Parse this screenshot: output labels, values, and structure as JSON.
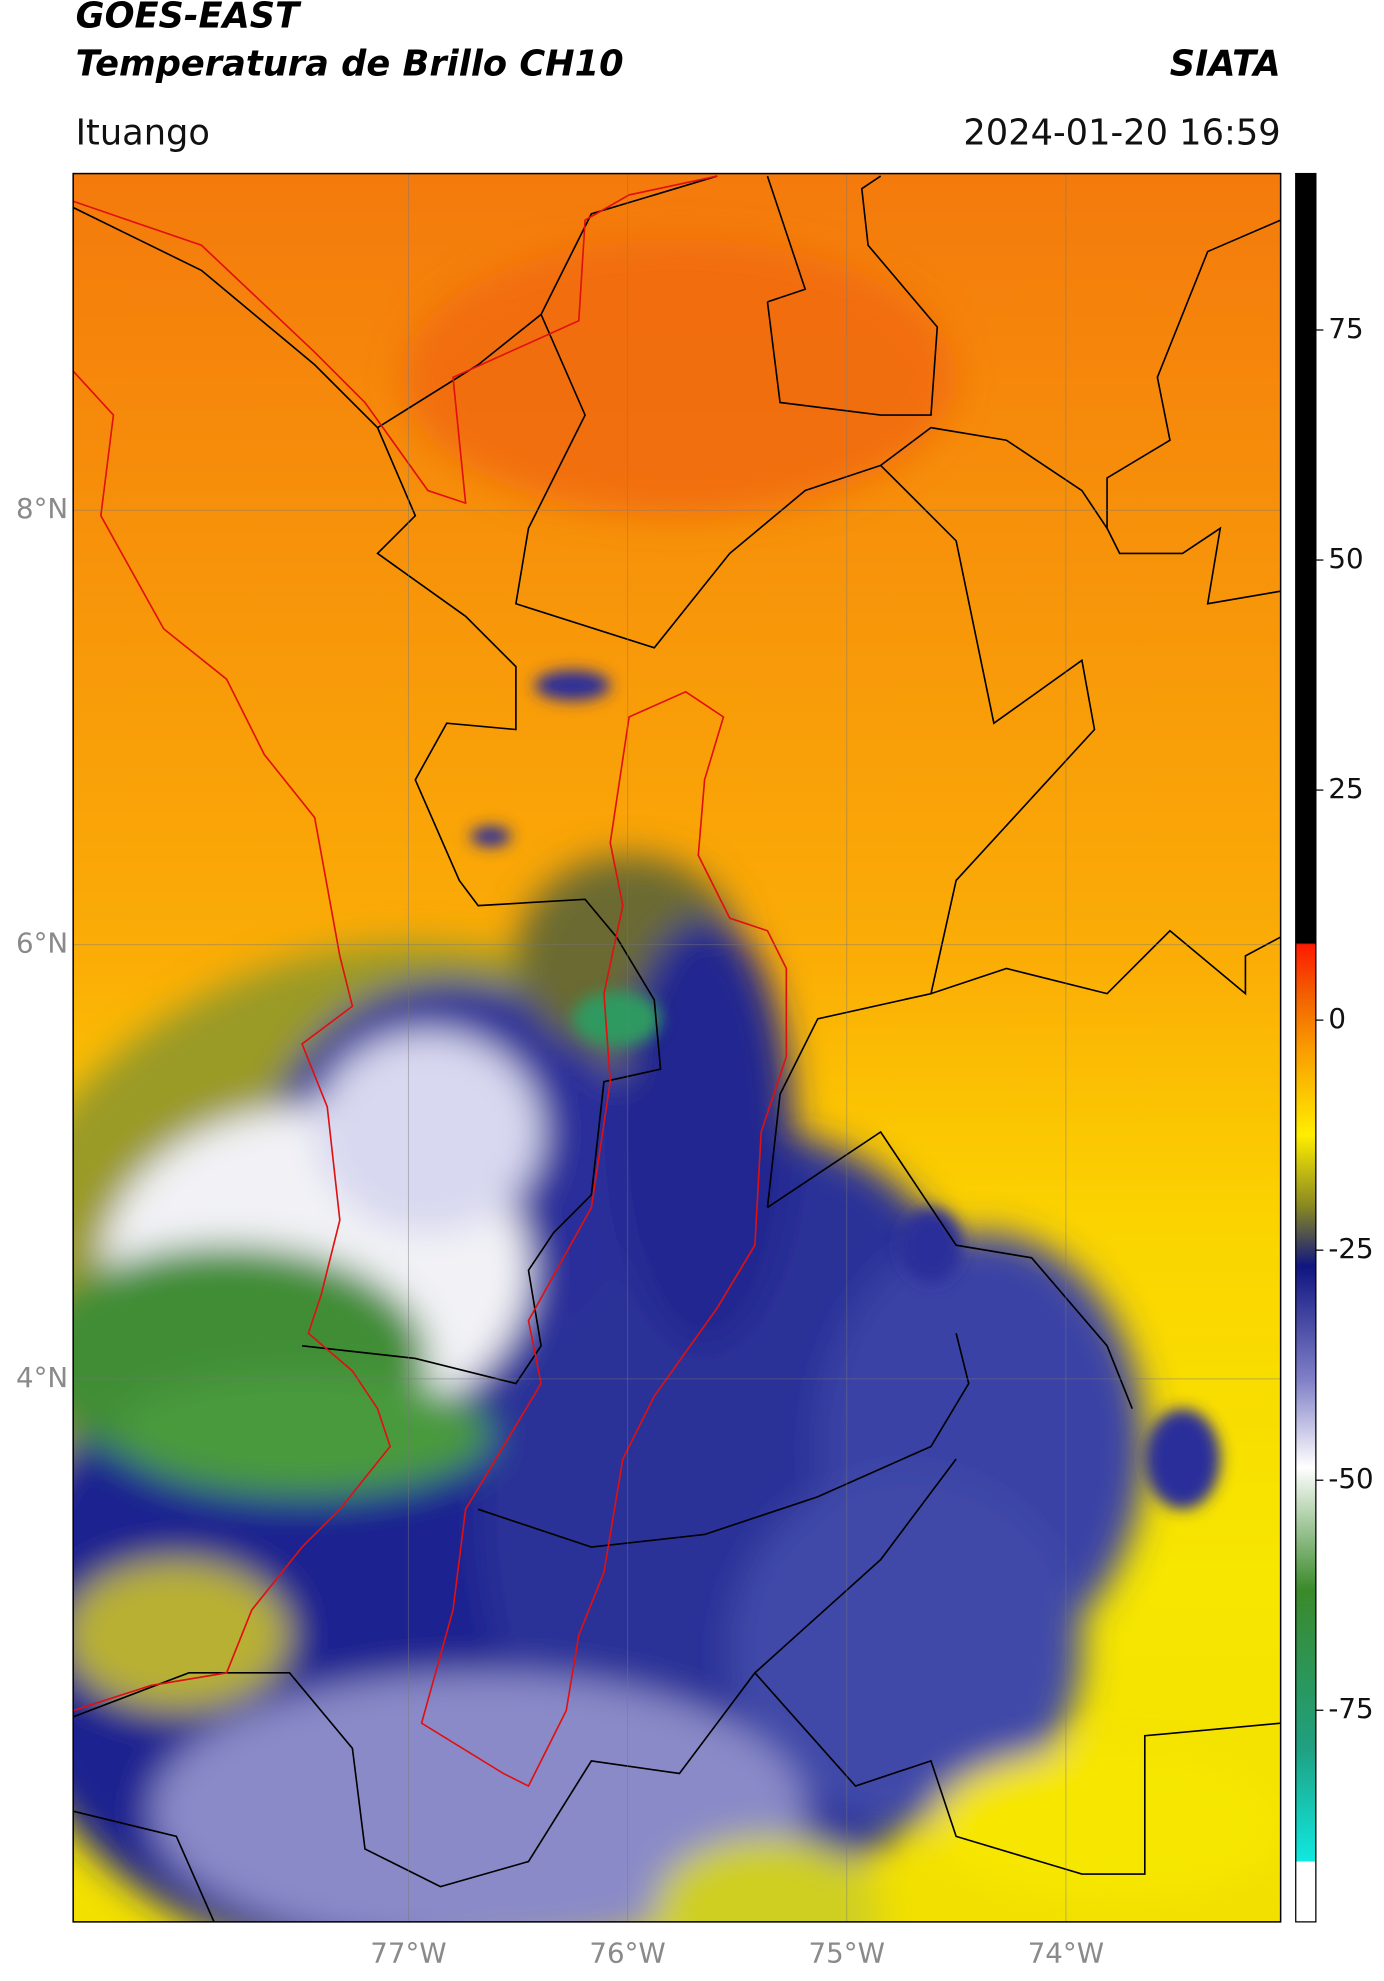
{
  "header": {
    "title": "GOES-EAST",
    "subtitle": "Temperatura de Brillo CH10",
    "brand": "SIATA",
    "location": "Ituango",
    "datetime": "2024-01-20 16:59"
  },
  "map": {
    "latlim": [
      1.5,
      9.55
    ],
    "lonlim": [
      -78.53,
      -73.02
    ],
    "grid": true,
    "lat_ticks": [
      {
        "value": 8,
        "label": "8°N"
      },
      {
        "value": 6,
        "label": "6°N"
      },
      {
        "value": 4,
        "label": "4°N"
      }
    ],
    "lon_ticks": [
      {
        "value": -77,
        "label": "77°W"
      },
      {
        "value": -76,
        "label": "76°W"
      },
      {
        "value": -75,
        "label": "75°W"
      },
      {
        "value": -74,
        "label": "74°W"
      }
    ]
  },
  "colorbar": {
    "lim": [
      -98,
      92
    ],
    "ticks": [
      75,
      50,
      25,
      0,
      -25,
      -50,
      -75
    ]
  }
}
